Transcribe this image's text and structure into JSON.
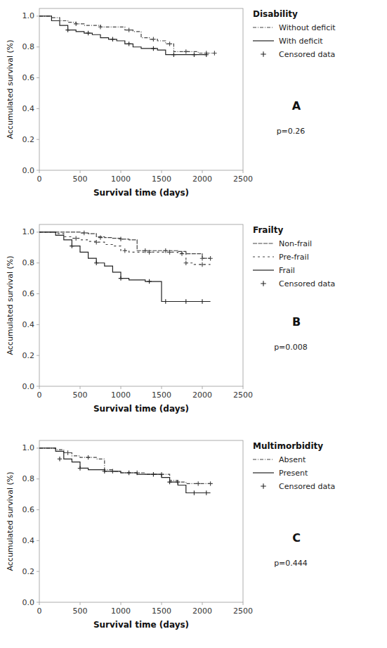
{
  "chart_data": [
    {
      "type": "step",
      "xlabel": "Survival time (days)",
      "ylabel": "Accumulated survival (%)",
      "legend_title": "Disability",
      "annotations": [
        "A",
        "p=0.26"
      ],
      "xlim": [
        0,
        2500
      ],
      "ylim": [
        0.0,
        1.05
      ],
      "xticks": [
        0,
        500,
        1000,
        1500,
        2000,
        2500
      ],
      "yticks": [
        {
          "value": 0.0,
          "label": "0.0"
        },
        0.2,
        0.4,
        0.6,
        0.8,
        {
          "value": 1.0,
          "label": "1.0"
        }
      ],
      "censored_label": "Censored data",
      "censored_color": "#222222",
      "censored_marker": "plus",
      "series": [
        {
          "name": "Without deficit",
          "line_style": "dashed_dot",
          "color": "#444444",
          "x": [
            0,
            50,
            150,
            250,
            350,
            450,
            550,
            650,
            750,
            850,
            950,
            1050,
            1150,
            1250,
            1350,
            1450,
            1550,
            1650,
            1750,
            1850,
            1950,
            2050,
            2150
          ],
          "values": [
            1.0,
            1.0,
            0.99,
            0.97,
            0.96,
            0.95,
            0.94,
            0.94,
            0.93,
            0.93,
            0.93,
            0.91,
            0.9,
            0.86,
            0.85,
            0.84,
            0.82,
            0.77,
            0.77,
            0.77,
            0.76,
            0.76,
            0.76
          ],
          "censored": {
            "x": [
              450,
              750,
              1100,
              1400,
              1600,
              1800,
              2050,
              2150
            ],
            "values": [
              0.95,
              0.93,
              0.91,
              0.85,
              0.82,
              0.77,
              0.76,
              0.76
            ]
          }
        },
        {
          "name": "With deficit",
          "line_style": "solid",
          "color": "#222222",
          "x": [
            0,
            50,
            150,
            250,
            350,
            450,
            550,
            650,
            750,
            850,
            950,
            1050,
            1150,
            1250,
            1350,
            1450,
            1550,
            1650,
            1750,
            1850,
            1950,
            2050
          ],
          "values": [
            1.0,
            1.0,
            0.97,
            0.94,
            0.91,
            0.9,
            0.89,
            0.88,
            0.86,
            0.85,
            0.84,
            0.82,
            0.8,
            0.79,
            0.79,
            0.78,
            0.75,
            0.75,
            0.75,
            0.75,
            0.75,
            0.75
          ],
          "censored": {
            "x": [
              350,
              600,
              900,
              1100,
              1400,
              1650,
              1900,
              2050
            ],
            "values": [
              0.91,
              0.89,
              0.85,
              0.82,
              0.79,
              0.75,
              0.75,
              0.75
            ]
          }
        }
      ]
    },
    {
      "type": "step",
      "xlabel": "Survival time (days)",
      "ylabel": "Accumulated survival (%)",
      "legend_title": "Frailty",
      "annotations": [
        "B",
        "p=0.008"
      ],
      "xlim": [
        0,
        2500
      ],
      "ylim": [
        0.0,
        1.05
      ],
      "xticks": [
        0,
        500,
        1000,
        1500,
        2000,
        2500
      ],
      "yticks": [
        {
          "value": 0.0,
          "label": "0.0"
        },
        0.2,
        0.4,
        0.6,
        0.8,
        {
          "value": 1.0,
          "label": "1.0"
        }
      ],
      "censored_label": "Censored data",
      "censored_color": "#222222",
      "censored_marker": "plus",
      "series": [
        {
          "name": "Non-frail",
          "line_style": "densely_dashed",
          "color": "#444444",
          "x": [
            0,
            100,
            200,
            300,
            400,
            500,
            600,
            700,
            800,
            900,
            1000,
            1100,
            1200,
            1300,
            1400,
            1500,
            1600,
            1700,
            1800,
            1900,
            2000,
            2100
          ],
          "values": [
            1.0,
            1.0,
            1.0,
            1.0,
            1.0,
            0.995,
            0.99,
            0.97,
            0.965,
            0.96,
            0.955,
            0.95,
            0.88,
            0.88,
            0.88,
            0.88,
            0.88,
            0.875,
            0.86,
            0.86,
            0.83,
            0.83
          ],
          "censored": {
            "x": [
              550,
              750,
              1000,
              1300,
              1550,
              1750,
              2000,
              2100
            ],
            "values": [
              0.995,
              0.965,
              0.955,
              0.88,
              0.88,
              0.86,
              0.83,
              0.83
            ]
          }
        },
        {
          "name": "Pre-frail",
          "line_style": "loosely_dashed",
          "color": "#444444",
          "x": [
            0,
            100,
            200,
            300,
            400,
            500,
            600,
            700,
            800,
            900,
            1000,
            1100,
            1200,
            1300,
            1400,
            1500,
            1600,
            1700,
            1800,
            1900,
            2000,
            2100
          ],
          "values": [
            1.0,
            1.0,
            0.99,
            0.97,
            0.96,
            0.95,
            0.94,
            0.935,
            0.92,
            0.91,
            0.88,
            0.87,
            0.87,
            0.87,
            0.87,
            0.87,
            0.87,
            0.865,
            0.8,
            0.79,
            0.79,
            0.79
          ],
          "censored": {
            "x": [
              450,
              700,
              1050,
              1350,
              1600,
              1800,
              2000
            ],
            "values": [
              0.96,
              0.935,
              0.88,
              0.87,
              0.87,
              0.8,
              0.79
            ]
          }
        },
        {
          "name": "Frail",
          "line_style": "solid",
          "color": "#222222",
          "x": [
            0,
            100,
            200,
            300,
            400,
            500,
            600,
            700,
            800,
            900,
            1000,
            1100,
            1200,
            1300,
            1400,
            1500,
            1600,
            1700,
            1800,
            1900,
            2000,
            2100
          ],
          "values": [
            1.0,
            1.0,
            0.98,
            0.95,
            0.91,
            0.87,
            0.83,
            0.8,
            0.78,
            0.74,
            0.7,
            0.69,
            0.69,
            0.68,
            0.68,
            0.55,
            0.55,
            0.55,
            0.55,
            0.55,
            0.55,
            0.55
          ],
          "censored": {
            "x": [
              400,
              700,
              1000,
              1350,
              1550,
              1800,
              2000
            ],
            "values": [
              0.91,
              0.8,
              0.7,
              0.68,
              0.55,
              0.55,
              0.55
            ]
          }
        }
      ]
    },
    {
      "type": "step",
      "xlabel": "Survival time (days)",
      "ylabel": "Accumulated survival (%)",
      "legend_title": "Multimorbidity",
      "annotations": [
        "C",
        "p=0.444"
      ],
      "xlim": [
        0,
        2500
      ],
      "ylim": [
        0.0,
        1.05
      ],
      "xticks": [
        0,
        500,
        1000,
        1500,
        2000,
        2500
      ],
      "yticks": [
        {
          "value": 0.0,
          "label": "0.0"
        },
        0.2,
        0.4,
        0.6,
        0.8,
        {
          "value": 1.0,
          "label": "1.0"
        }
      ],
      "censored_label": "Censored data",
      "censored_color": "#222222",
      "censored_marker": "plus",
      "series": [
        {
          "name": "Absent",
          "line_style": "dashed_dot",
          "color": "#444444",
          "x": [
            0,
            100,
            200,
            300,
            400,
            500,
            600,
            700,
            800,
            900,
            1000,
            1100,
            1200,
            1300,
            1400,
            1500,
            1600,
            1700,
            1800,
            1900,
            2000,
            2100
          ],
          "values": [
            1.0,
            1.0,
            0.99,
            0.97,
            0.95,
            0.94,
            0.94,
            0.93,
            0.86,
            0.85,
            0.84,
            0.84,
            0.84,
            0.83,
            0.83,
            0.83,
            0.79,
            0.78,
            0.77,
            0.77,
            0.77,
            0.77
          ],
          "censored": {
            "x": [
              350,
              600,
              900,
              1200,
              1500,
              1700,
              1950,
              2100
            ],
            "values": [
              0.97,
              0.94,
              0.85,
              0.84,
              0.83,
              0.78,
              0.77,
              0.77
            ]
          }
        },
        {
          "name": "Present",
          "line_style": "solid",
          "color": "#222222",
          "x": [
            0,
            100,
            200,
            300,
            400,
            500,
            600,
            700,
            800,
            900,
            1000,
            1100,
            1200,
            1300,
            1400,
            1500,
            1600,
            1700,
            1800,
            1900,
            2000,
            2100
          ],
          "values": [
            1.0,
            1.0,
            0.98,
            0.93,
            0.91,
            0.87,
            0.86,
            0.86,
            0.85,
            0.85,
            0.84,
            0.84,
            0.83,
            0.83,
            0.83,
            0.81,
            0.78,
            0.76,
            0.71,
            0.71,
            0.71,
            0.71
          ],
          "censored": {
            "x": [
              250,
              500,
              800,
              1100,
              1400,
              1600,
              1900,
              2050
            ],
            "values": [
              0.93,
              0.87,
              0.85,
              0.84,
              0.83,
              0.78,
              0.71,
              0.71
            ]
          }
        }
      ]
    }
  ]
}
